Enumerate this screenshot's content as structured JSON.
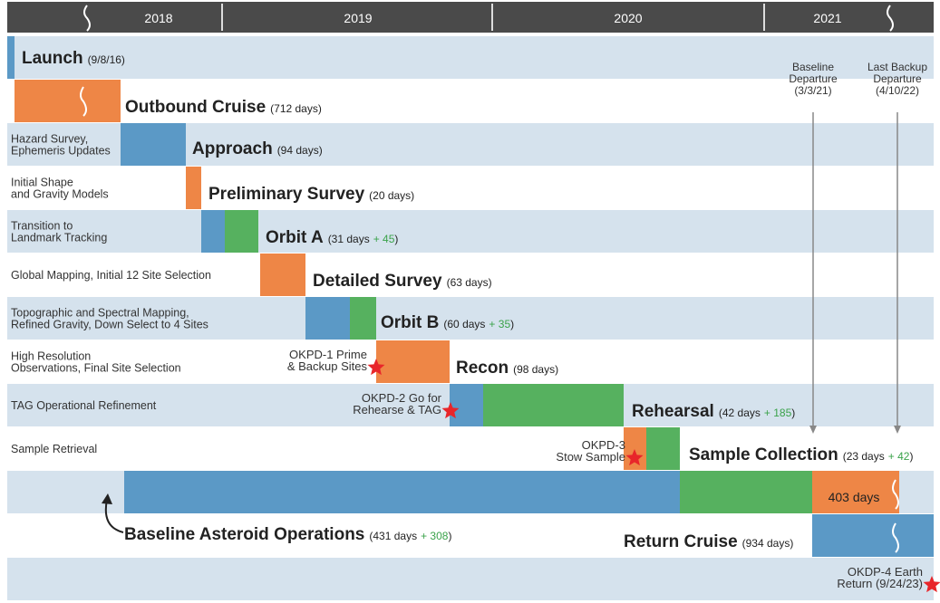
{
  "header": {
    "years": [
      "2018",
      "2019",
      "2020",
      "2021"
    ]
  },
  "phases": [
    {
      "name": "Launch",
      "detail": "(9/8/16)"
    },
    {
      "name": "Outbound Cruise",
      "detail": "(712 days)"
    },
    {
      "label": [
        "Hazard Survey,",
        "Ephemeris Updates"
      ],
      "name": "Approach",
      "detail": "(94 days)"
    },
    {
      "label": [
        "Initial Shape",
        "and Gravity Models"
      ],
      "name": "Preliminary Survey",
      "detail": "(20 days)"
    },
    {
      "label": [
        "Transition to",
        "Landmark Tracking"
      ],
      "name": "Orbit A",
      "detail": "(31 days",
      "extra": "+ 45",
      "detail_end": ")"
    },
    {
      "label": [
        "Global Mapping, Initial 12 Site Selection"
      ],
      "name": "Detailed Survey",
      "detail": "(63 days)"
    },
    {
      "label": [
        "Topographic and Spectral Mapping,",
        "Refined Gravity, Down Select to 4 Sites"
      ],
      "name": "Orbit B",
      "detail": "(60 days",
      "extra": "+ 35",
      "detail_end": ")"
    },
    {
      "label": [
        "High Resolution",
        "Observations, Final Site Selection"
      ],
      "name": "Recon",
      "detail": "(98 days)"
    },
    {
      "label": [
        "TAG Operational Refinement"
      ],
      "name": "Rehearsal",
      "detail": "(42 days",
      "extra": "+ 185",
      "detail_end": ")"
    },
    {
      "label": [
        "Sample Retrieval"
      ],
      "name": "Sample Collection",
      "detail": "(23 days",
      "extra": "+ 42",
      "detail_end": ")"
    },
    {
      "name": "Baseline Asteroid Operations",
      "detail": "(431 days",
      "extra": "+ 308",
      "detail_end": ")"
    },
    {
      "name": "Return Cruise",
      "detail": "(934 days)"
    }
  ],
  "milestones": [
    {
      "lines": [
        "OKPD-1 Prime",
        "& Backup Sites"
      ]
    },
    {
      "lines": [
        "OKPD-2 Go for",
        "Rehearse & TAG"
      ]
    },
    {
      "lines": [
        "OKPD-3",
        "Stow Sample"
      ]
    },
    {
      "lines": [
        "OKDP-4 Earth",
        "Return (9/24/23)"
      ]
    }
  ],
  "departures": [
    {
      "lines": [
        "Baseline",
        "Departure",
        "(3/3/21)"
      ]
    },
    {
      "lines": [
        "Last Backup",
        "Departure",
        "(4/10/22)"
      ]
    }
  ],
  "bar_label": "403 days"
}
